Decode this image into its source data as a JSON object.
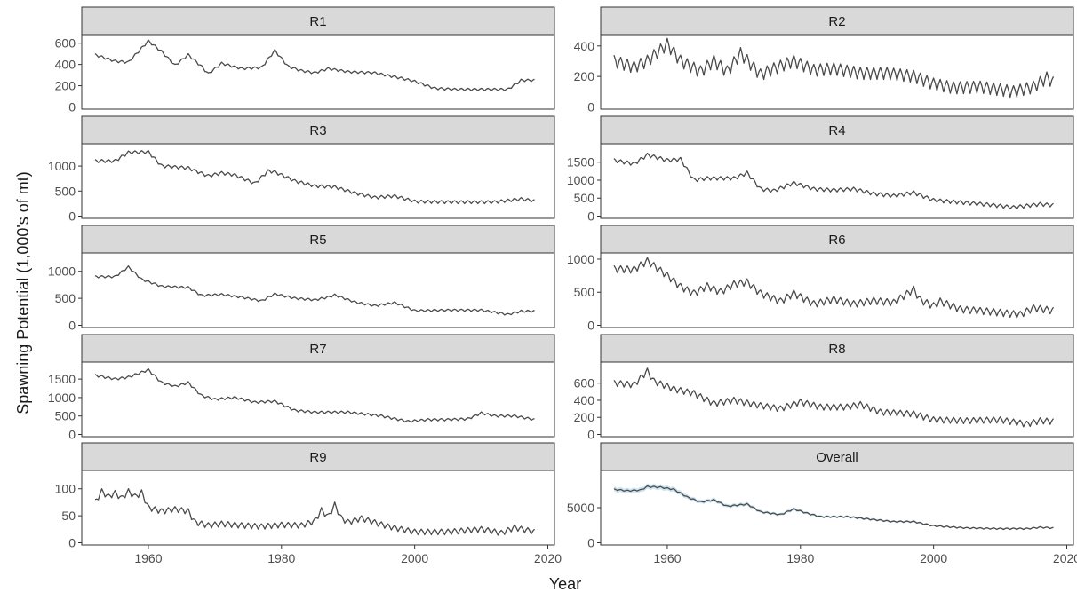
{
  "colors": {
    "line": "#4a4a4a",
    "ribbon": "#a6cee3",
    "strip": "#d9d9d9",
    "overall_line": "#1f2f3f"
  },
  "chart_data": {
    "type": "line",
    "xlabel": "Year",
    "ylabel": "Spawning Potential (1,000's of mt)",
    "xlim": [
      1950,
      2021
    ],
    "x_ticks": [
      1960,
      1980,
      2000,
      2020
    ],
    "grid": false,
    "panels": [
      {
        "name": "R1",
        "ylim": [
          0,
          660
        ],
        "y_ticks": [
          0,
          200,
          400,
          600
        ],
        "oscillation": 0.03,
        "x": [
          1952,
          1955,
          1957,
          1960,
          1962,
          1964,
          1966,
          1968,
          1969,
          1971,
          1974,
          1977,
          1979,
          1981,
          1983,
          1985,
          1987,
          1990,
          1994,
          1998,
          2000,
          2003,
          2006,
          2010,
          2014,
          2016,
          2018
        ],
        "values": [
          490,
          430,
          420,
          620,
          520,
          390,
          490,
          380,
          310,
          410,
          360,
          370,
          530,
          380,
          340,
          320,
          360,
          330,
          320,
          270,
          240,
          175,
          165,
          165,
          165,
          250,
          250
        ]
      },
      {
        "name": "R2",
        "ylim": [
          0,
          460
        ],
        "y_ticks": [
          0,
          200,
          400
        ],
        "oscillation": 0.16,
        "x": [
          1952,
          1955,
          1957,
          1960,
          1962,
          1965,
          1967,
          1969,
          1971,
          1974,
          1976,
          1979,
          1982,
          1985,
          1989,
          1993,
          1997,
          2000,
          2003,
          2007,
          2012,
          2015,
          2017,
          2018
        ],
        "values": [
          300,
          260,
          300,
          410,
          300,
          230,
          300,
          230,
          350,
          210,
          250,
          300,
          240,
          250,
          220,
          220,
          200,
          150,
          125,
          130,
          100,
          130,
          190,
          160
        ]
      },
      {
        "name": "R3",
        "ylim": [
          0,
          1400
        ],
        "y_ticks": [
          0,
          500,
          1000
        ],
        "oscillation": 0.04,
        "x": [
          1952,
          1955,
          1957,
          1960,
          1962,
          1966,
          1969,
          1971,
          1973,
          1976,
          1978,
          1979,
          1982,
          1985,
          1988,
          1991,
          1994,
          1997,
          2000,
          2005,
          2012,
          2016,
          2018
        ],
        "values": [
          1100,
          1100,
          1270,
          1280,
          1000,
          960,
          800,
          860,
          820,
          650,
          900,
          880,
          700,
          600,
          580,
          460,
          370,
          400,
          290,
          280,
          280,
          340,
          300
        ]
      },
      {
        "name": "R4",
        "ylim": [
          0,
          1950
        ],
        "y_ticks": [
          0,
          500,
          1000,
          1500
        ],
        "oscillation": 0.05,
        "x": [
          1952,
          1955,
          1957,
          1960,
          1962,
          1964,
          1966,
          1970,
          1972,
          1974,
          1976,
          1979,
          1982,
          1985,
          1988,
          1991,
          1994,
          1997,
          2000,
          2004,
          2008,
          2012,
          2016,
          2018
        ],
        "values": [
          1550,
          1450,
          1700,
          1550,
          1580,
          1000,
          1050,
          1050,
          1200,
          750,
          700,
          920,
          750,
          720,
          750,
          620,
          560,
          650,
          440,
          380,
          320,
          240,
          330,
          300
        ]
      },
      {
        "name": "R5",
        "ylim": [
          0,
          1300
        ],
        "y_ticks": [
          0,
          500,
          1000
        ],
        "oscillation": 0.03,
        "x": [
          1952,
          1955,
          1957,
          1959,
          1962,
          1966,
          1968,
          1971,
          1974,
          1977,
          1979,
          1982,
          1985,
          1987,
          1988,
          1991,
          1994,
          1997,
          2000,
          2005,
          2010,
          2014,
          2016,
          2018
        ],
        "values": [
          900,
          900,
          1080,
          850,
          720,
          700,
          550,
          570,
          520,
          450,
          580,
          500,
          470,
          520,
          560,
          430,
          360,
          420,
          270,
          280,
          280,
          200,
          260,
          260
        ]
      },
      {
        "name": "R6",
        "ylim": [
          0,
          1060
        ],
        "y_ticks": [
          0,
          500,
          1000
        ],
        "oscillation": 0.09,
        "x": [
          1952,
          1955,
          1957,
          1960,
          1962,
          1964,
          1966,
          1968,
          1970,
          1972,
          1974,
          1977,
          1979,
          1982,
          1985,
          1988,
          1991,
          1994,
          1997,
          1998,
          2000,
          2001,
          2004,
          2008,
          2013,
          2015,
          2018
        ],
        "values": [
          850,
          840,
          970,
          750,
          580,
          480,
          590,
          500,
          620,
          650,
          480,
          360,
          480,
          320,
          390,
          320,
          370,
          340,
          540,
          380,
          290,
          360,
          240,
          210,
          160,
          260,
          220
        ]
      },
      {
        "name": "R7",
        "ylim": [
          0,
          1900
        ],
        "y_ticks": [
          0,
          500,
          1000,
          1500
        ],
        "oscillation": 0.03,
        "x": [
          1952,
          1955,
          1957,
          1960,
          1962,
          1964,
          1966,
          1968,
          1970,
          1973,
          1976,
          1979,
          1982,
          1985,
          1990,
          1995,
          1999,
          2002,
          2005,
          2008,
          2010,
          2012,
          2015,
          2018
        ],
        "values": [
          1600,
          1500,
          1550,
          1750,
          1400,
          1300,
          1400,
          1050,
          950,
          1000,
          870,
          900,
          650,
          600,
          600,
          500,
          350,
          400,
          400,
          420,
          580,
          500,
          500,
          400
        ]
      },
      {
        "name": "R8",
        "ylim": [
          0,
          820
        ],
        "y_ticks": [
          0,
          200,
          400,
          600
        ],
        "oscillation": 0.08,
        "x": [
          1952,
          1955,
          1957,
          1958,
          1961,
          1964,
          1967,
          1970,
          1973,
          1977,
          1980,
          1983,
          1987,
          1989,
          1992,
          1997,
          2000,
          2005,
          2010,
          2014,
          2016,
          2018
        ],
        "values": [
          600,
          580,
          740,
          620,
          530,
          480,
          360,
          400,
          350,
          300,
          380,
          320,
          320,
          350,
          260,
          240,
          170,
          160,
          170,
          120,
          160,
          150
        ]
      },
      {
        "name": "R9",
        "ylim": [
          0,
          130
        ],
        "y_ticks": [
          0,
          50,
          100
        ],
        "oscillation": 0.09,
        "x": [
          1952,
          1953,
          1954,
          1955,
          1956,
          1957,
          1958,
          1959,
          1960,
          1962,
          1964,
          1966,
          1967,
          1969,
          1971,
          1974,
          1977,
          1980,
          1983,
          1985,
          1986,
          1987,
          1988,
          1989,
          1990,
          1992,
          1996,
          2000,
          2005,
          2010,
          2013,
          2015,
          2018
        ],
        "values": [
          75,
          95,
          85,
          92,
          82,
          95,
          85,
          93,
          65,
          58,
          62,
          58,
          38,
          32,
          35,
          32,
          30,
          33,
          32,
          40,
          60,
          48,
          70,
          45,
          38,
          45,
          30,
          20,
          20,
          25,
          18,
          28,
          20
        ]
      },
      {
        "name": "Overall",
        "ylim": [
          0,
          10000
        ],
        "y_ticks": [
          0,
          5000
        ],
        "ribbon_fraction": 0.045,
        "oscillation": 0.02,
        "x": [
          1952,
          1954,
          1956,
          1957,
          1959,
          1961,
          1963,
          1965,
          1967,
          1969,
          1972,
          1974,
          1977,
          1979,
          1981,
          1983,
          1987,
          1990,
          1994,
          1997,
          2000,
          2005,
          2010,
          2014,
          2016,
          2018
        ],
        "values": [
          7600,
          7400,
          7500,
          8000,
          7900,
          7600,
          6500,
          5800,
          6100,
          5200,
          5500,
          4400,
          4000,
          4800,
          4200,
          3700,
          3700,
          3400,
          3000,
          3000,
          2400,
          2100,
          2000,
          2000,
          2200,
          2100
        ]
      }
    ]
  }
}
